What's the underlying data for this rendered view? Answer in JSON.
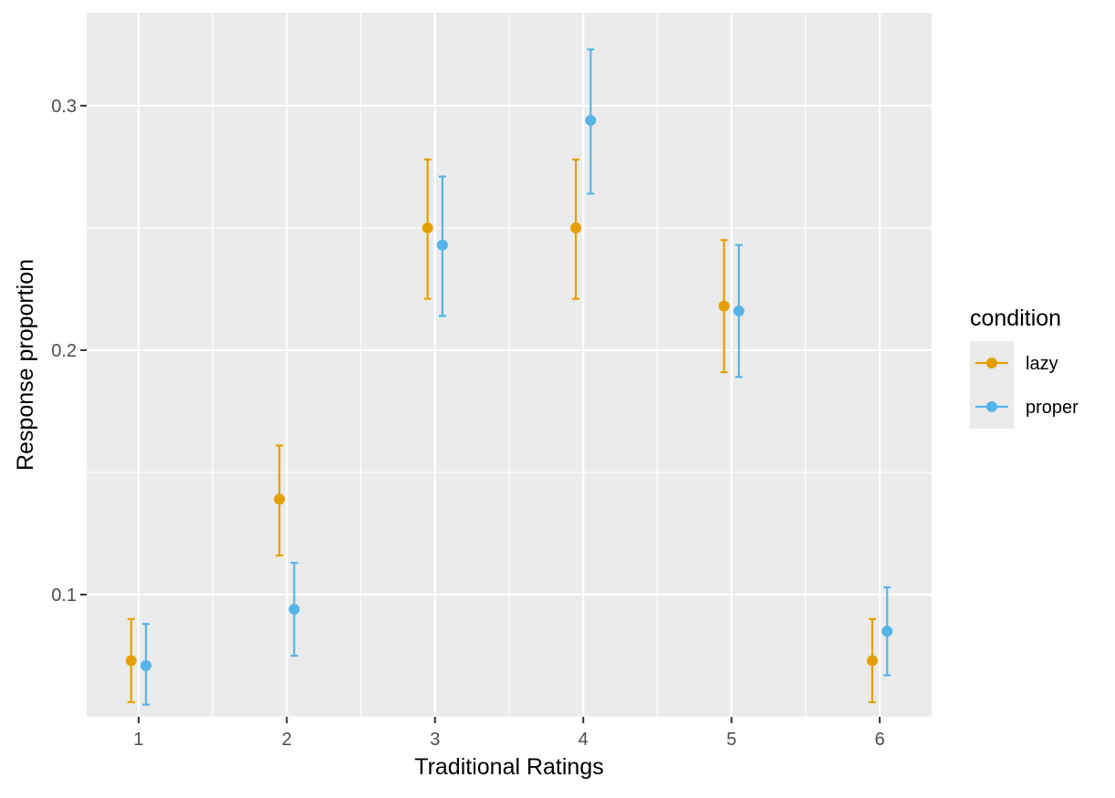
{
  "chart_data": {
    "type": "scatter",
    "title": "",
    "xlabel": "Traditional Ratings",
    "ylabel": "Response proportion",
    "x": [
      1,
      2,
      3,
      4,
      5,
      6
    ],
    "x_tick_labels": [
      "1",
      "2",
      "3",
      "4",
      "5",
      "6"
    ],
    "xlim": [
      0.65,
      6.35
    ],
    "y_ticks": [
      0.1,
      0.2,
      0.3
    ],
    "y_tick_labels": [
      "0.1",
      "0.2",
      "0.3"
    ],
    "ylim": [
      0.05,
      0.338
    ],
    "grid": true,
    "legend": {
      "title": "condition",
      "position": "right"
    },
    "dodge": 0.05,
    "series": [
      {
        "name": "lazy",
        "color": "#E69F00",
        "values": [
          0.073,
          0.139,
          0.25,
          0.25,
          0.218,
          0.073
        ],
        "lower": [
          0.056,
          0.116,
          0.221,
          0.221,
          0.191,
          0.056
        ],
        "upper": [
          0.09,
          0.161,
          0.278,
          0.278,
          0.245,
          0.09
        ]
      },
      {
        "name": "proper",
        "color": "#56B4E9",
        "values": [
          0.071,
          0.094,
          0.243,
          0.294,
          0.216,
          0.085
        ],
        "lower": [
          0.055,
          0.075,
          0.214,
          0.264,
          0.189,
          0.067
        ],
        "upper": [
          0.088,
          0.113,
          0.271,
          0.323,
          0.243,
          0.103
        ]
      }
    ]
  }
}
